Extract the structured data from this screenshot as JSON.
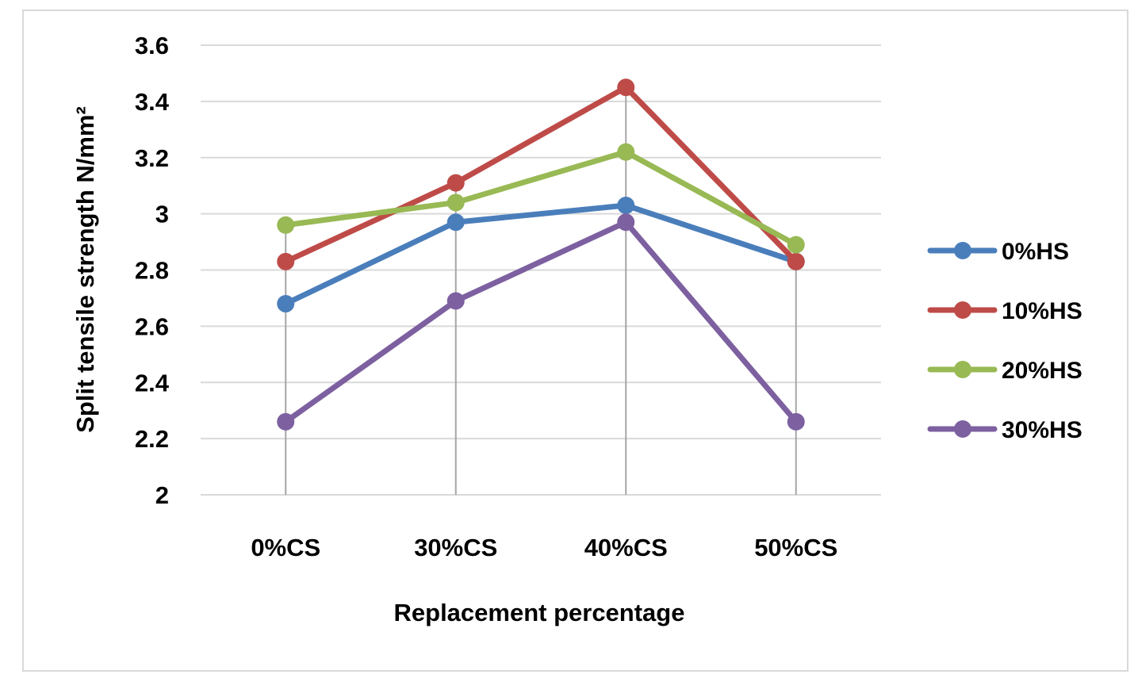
{
  "chart_data": {
    "type": "line",
    "title": "",
    "xlabel": "Replacement percentage",
    "ylabel": "Split tensile strength N/mm²",
    "categories": [
      "0%CS",
      "30%CS",
      "40%CS",
      "50%CS"
    ],
    "ylim": [
      2,
      3.6
    ],
    "yticks": [
      2,
      2.2,
      2.4,
      2.6,
      2.8,
      3,
      3.2,
      3.4,
      3.6
    ],
    "ytick_labels": [
      "2",
      "2.2",
      "2.4",
      "2.6",
      "2.8",
      "3",
      "3.2",
      "3.4",
      "3.6"
    ],
    "grid": true,
    "legend_position": "right",
    "series": [
      {
        "name": "0%HS",
        "color": "#4a7ebb",
        "values": [
          2.68,
          2.97,
          3.03,
          2.83
        ]
      },
      {
        "name": "10%HS",
        "color": "#be4b48",
        "values": [
          2.83,
          3.11,
          3.45,
          2.83
        ]
      },
      {
        "name": "20%HS",
        "color": "#98b954",
        "values": [
          2.96,
          3.04,
          3.22,
          2.89
        ]
      },
      {
        "name": "30%HS",
        "color": "#7d60a0",
        "values": [
          2.26,
          2.69,
          2.97,
          2.26
        ]
      }
    ]
  }
}
